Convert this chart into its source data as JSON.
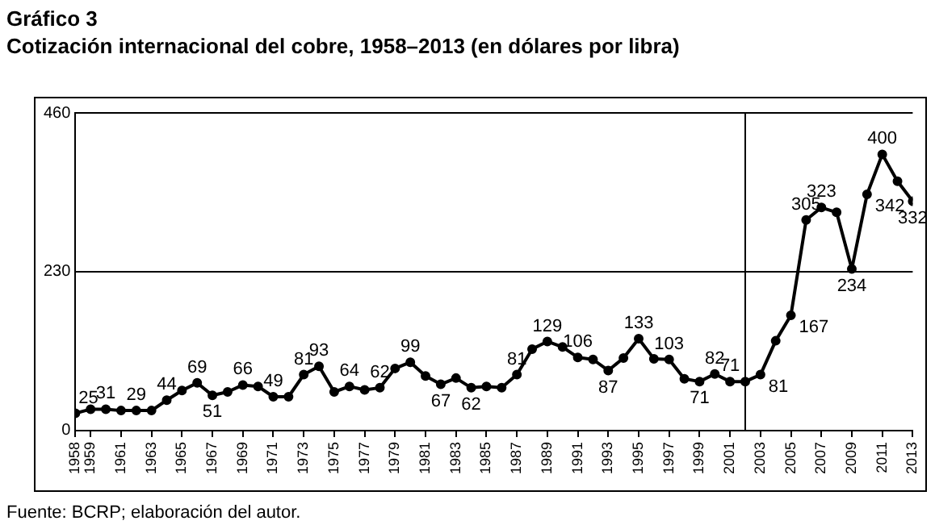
{
  "chart_data": {
    "type": "line",
    "title": "Gráfico 3",
    "subtitle": "Cotización internacional del cobre, 1958–2013 (en dólares por libra)",
    "x": [
      1958,
      1959,
      1960,
      1961,
      1962,
      1963,
      1964,
      1965,
      1966,
      1967,
      1968,
      1969,
      1970,
      1971,
      1972,
      1973,
      1974,
      1975,
      1976,
      1977,
      1978,
      1979,
      1980,
      1981,
      1982,
      1983,
      1984,
      1985,
      1986,
      1987,
      1988,
      1989,
      1990,
      1991,
      1992,
      1993,
      1994,
      1995,
      1996,
      1997,
      1998,
      1999,
      2000,
      2001,
      2002,
      2003,
      2004,
      2005,
      2006,
      2007,
      2008,
      2009,
      2010,
      2011,
      2012,
      2013
    ],
    "series": [
      {
        "color": "#000000",
        "values": [
          25,
          31,
          31,
          29,
          29,
          29,
          44,
          58,
          69,
          51,
          56,
          66,
          64,
          49,
          49,
          81,
          93,
          56,
          64,
          59,
          62,
          90,
          99,
          79,
          67,
          76,
          62,
          64,
          62,
          81,
          118,
          129,
          121,
          106,
          103,
          87,
          105,
          133,
          104,
          103,
          75,
          71,
          82,
          71,
          71,
          81,
          130,
          167,
          305,
          323,
          316,
          234,
          342,
          400,
          361,
          332
        ],
        "value_labels": [
          "25",
          null,
          "31",
          null,
          "29",
          null,
          "44",
          null,
          "69",
          "51",
          null,
          "66",
          null,
          "49",
          null,
          "81",
          "93",
          null,
          "64",
          null,
          "62",
          null,
          "99",
          null,
          "67",
          null,
          "62",
          null,
          null,
          "81",
          null,
          "129",
          null,
          "106",
          null,
          "87",
          null,
          "133",
          null,
          "103",
          null,
          "71",
          "82",
          "71",
          null,
          "81",
          null,
          "167",
          "305",
          "323",
          null,
          "234",
          "342",
          "400",
          null,
          "332"
        ]
      }
    ],
    "xlim": [
      1958,
      2013
    ],
    "xticks": [
      1958,
      1959,
      1961,
      1963,
      1965,
      1967,
      1969,
      1971,
      1973,
      1975,
      1977,
      1979,
      1981,
      1983,
      1985,
      1987,
      1989,
      1991,
      1993,
      1995,
      1997,
      1999,
      2001,
      2003,
      2005,
      2007,
      2009,
      2011,
      2013
    ],
    "ylim": [
      0,
      460
    ],
    "yticks": [
      0,
      230,
      460
    ],
    "grid": "y",
    "marker": "circle",
    "line_style": "solid",
    "ref_lines": [
      {
        "axis": "x",
        "value": 2002,
        "color": "#000000"
      }
    ],
    "annotations": [
      "Fuente: BCRP; elaboración del autor."
    ]
  }
}
